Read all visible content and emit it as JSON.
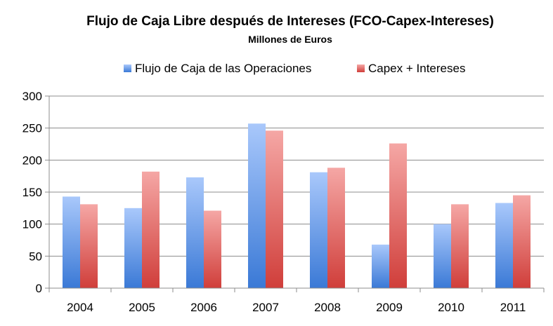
{
  "chart_data": {
    "type": "bar",
    "title": "Flujo de Caja Libre después de Intereses (FCO-Capex-Intereses)",
    "subtitle": "Millones de Euros",
    "categories": [
      "2004",
      "2005",
      "2006",
      "2007",
      "2008",
      "2009",
      "2010",
      "2011"
    ],
    "series": [
      {
        "name": "Flujo de Caja de las Operaciones",
        "values": [
          143,
          125,
          173,
          257,
          181,
          68,
          100,
          133
        ],
        "color_top": "#a9c8fb",
        "color_bottom": "#3a79d6"
      },
      {
        "name": "Capex + Intereses",
        "values": [
          131,
          182,
          121,
          246,
          188,
          226,
          131,
          145
        ],
        "color_top": "#f5a7a5",
        "color_bottom": "#d03e3a"
      }
    ],
    "ylim": [
      0,
      300
    ],
    "yticks": [
      "0",
      "50",
      "100",
      "150",
      "200",
      "250",
      "300"
    ],
    "xlabel": "",
    "ylabel": "",
    "grid": true,
    "legend_position": "top"
  }
}
